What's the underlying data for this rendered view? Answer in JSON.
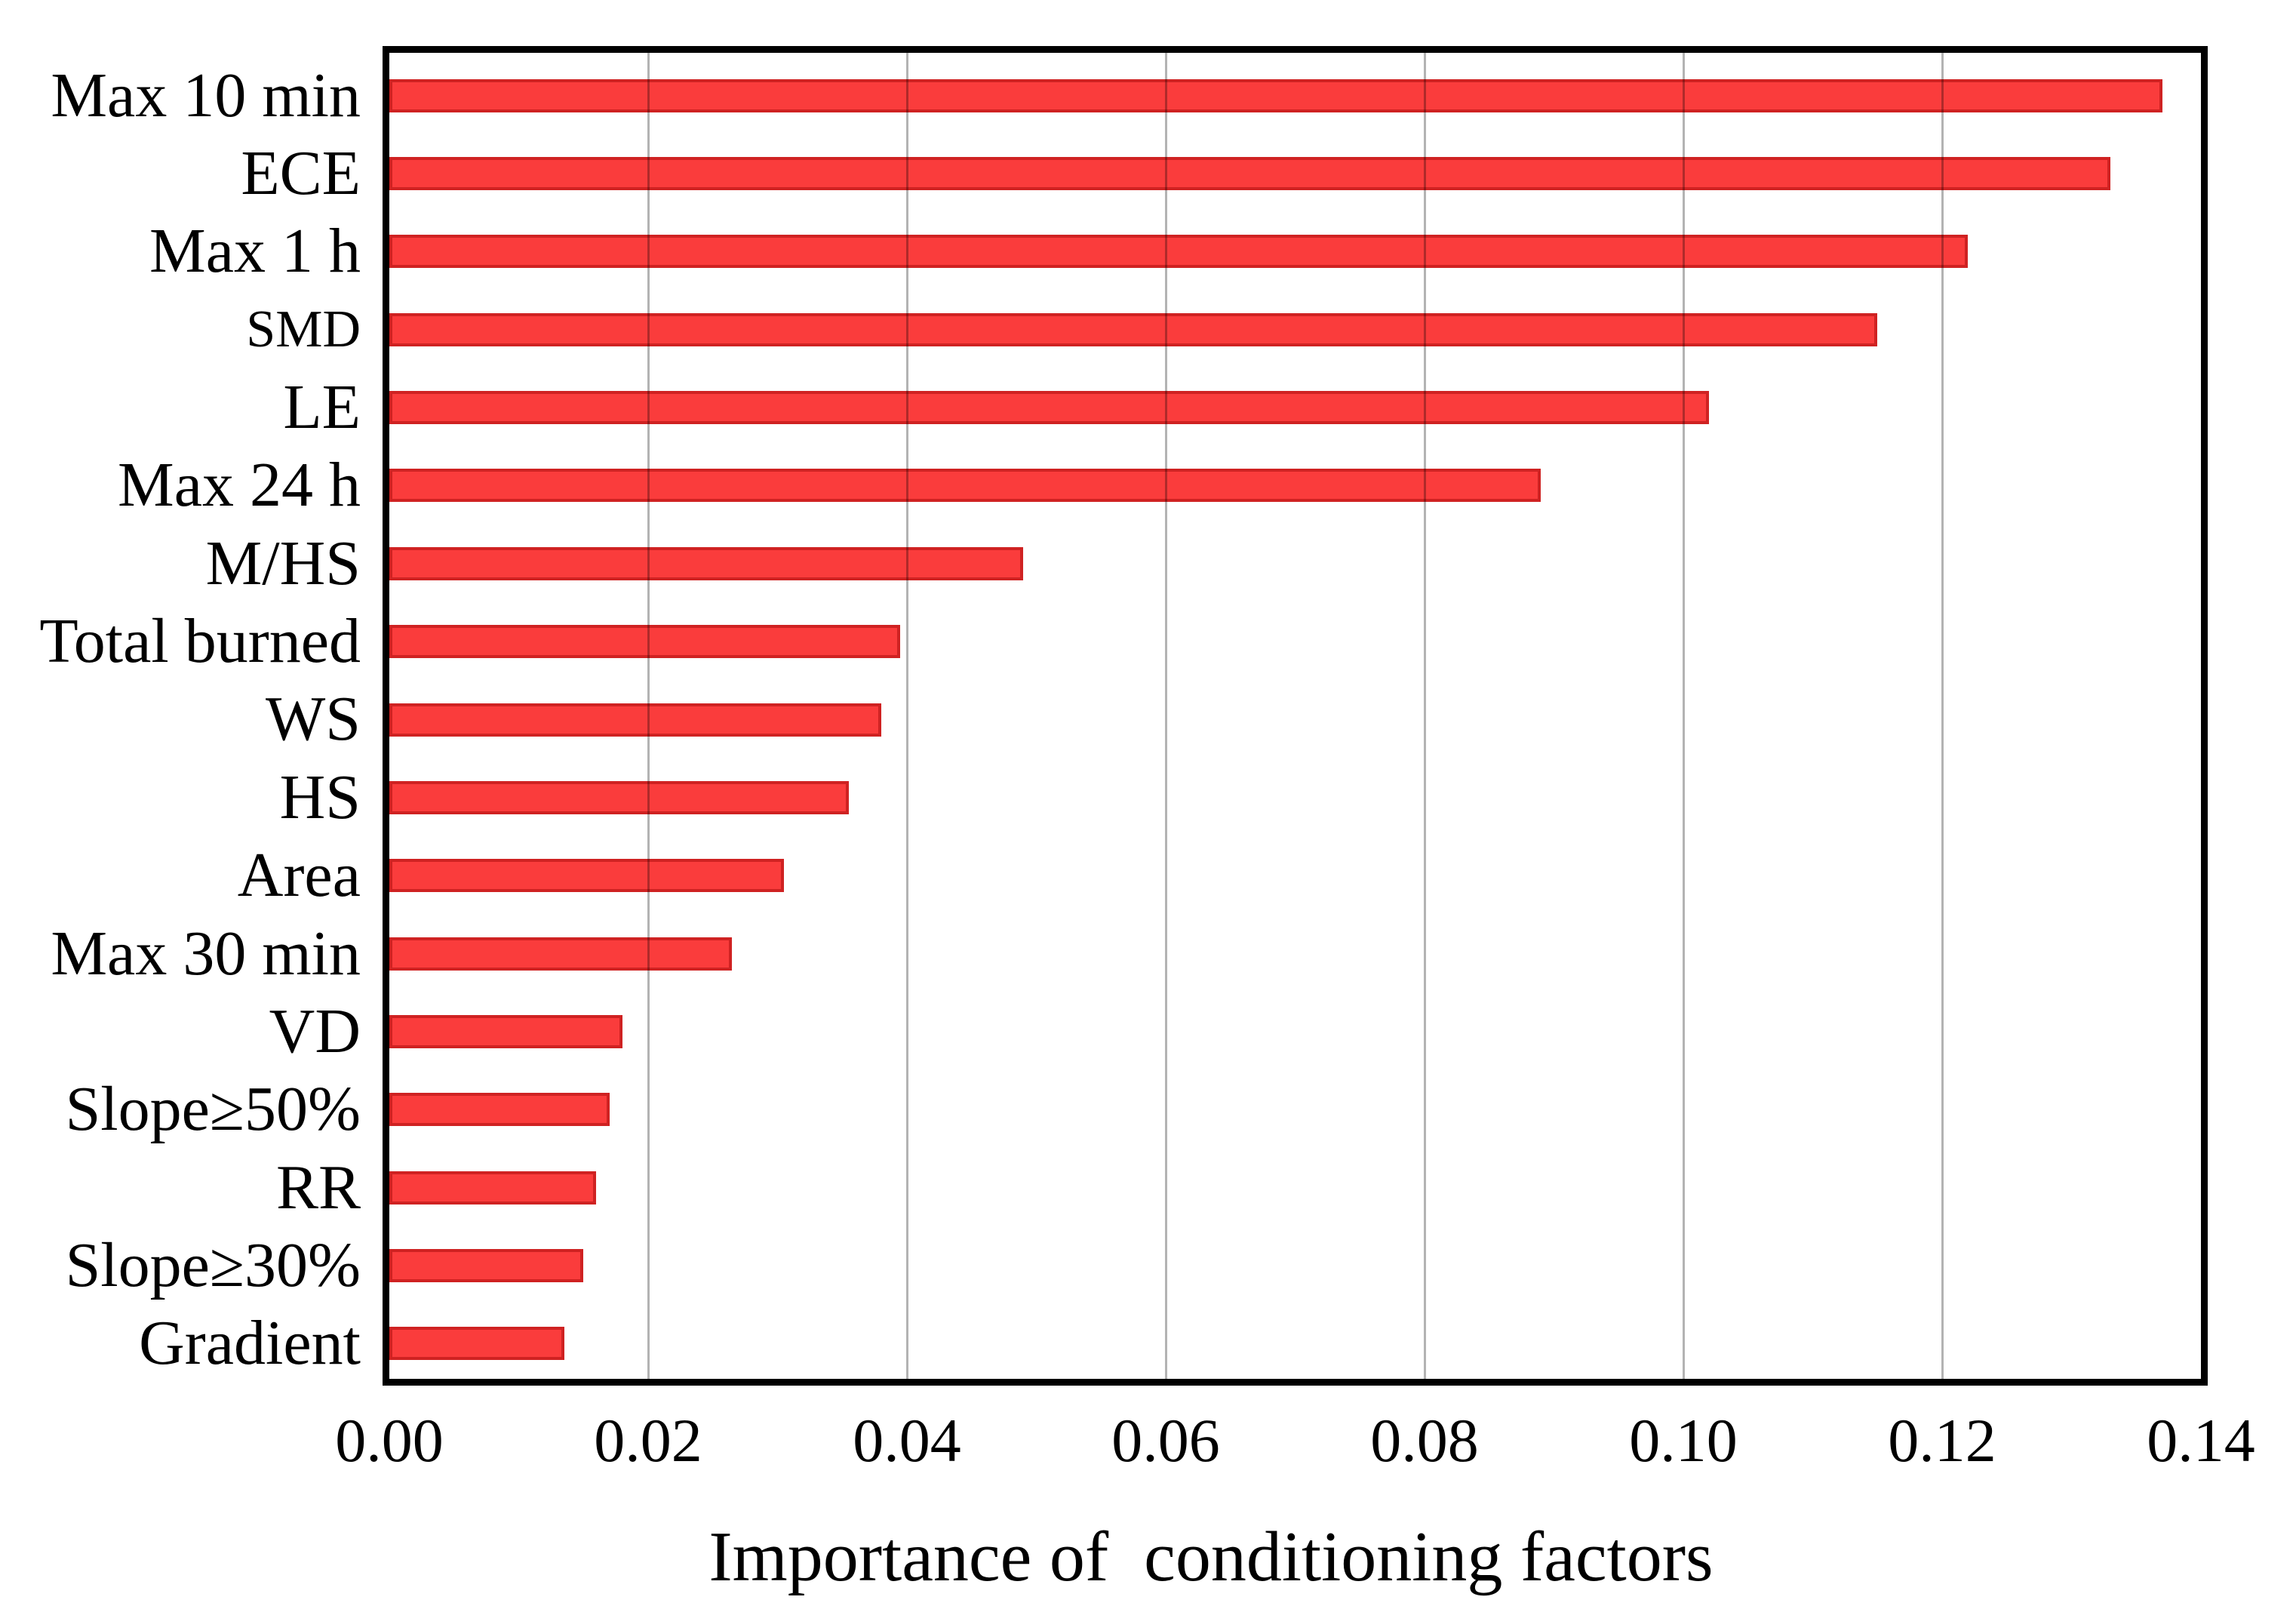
{
  "chart_data": {
    "type": "bar",
    "orientation": "horizontal",
    "title": "",
    "xlabel": "Importance of  conditioning factors",
    "ylabel": "",
    "categories": [
      "Max 10 min",
      "ECE",
      "Max 1 h",
      "SMD",
      "LE",
      "Max 24 h",
      "M/HS",
      "Total burned",
      "WS",
      "HS",
      "Area",
      "Max 30 min",
      "VD",
      "Slope≥50%",
      "RR",
      "Slope≥30%",
      "Gradient"
    ],
    "values": [
      0.137,
      0.133,
      0.122,
      0.115,
      0.102,
      0.089,
      0.049,
      0.0395,
      0.038,
      0.0355,
      0.0305,
      0.0265,
      0.018,
      0.017,
      0.016,
      0.015,
      0.0135
    ],
    "xlim": [
      0,
      0.14
    ],
    "xtick_labels": [
      "0.00",
      "0.02",
      "0.04",
      "0.06",
      "0.08",
      "0.10",
      "0.12",
      "0.14"
    ],
    "xtick_values": [
      0,
      0.02,
      0.04,
      0.06,
      0.08,
      0.1,
      0.12,
      0.14
    ],
    "grid": "vertical-gridlines-on",
    "legend": "none",
    "small_labels": [
      "SMD"
    ],
    "colors": {
      "bar_fill": "#fa3c3c",
      "bar_border": "#cf2222",
      "gridline": "#b3b3b3",
      "frame": "#000000",
      "text": "#000000",
      "background": "#ffffff"
    }
  }
}
